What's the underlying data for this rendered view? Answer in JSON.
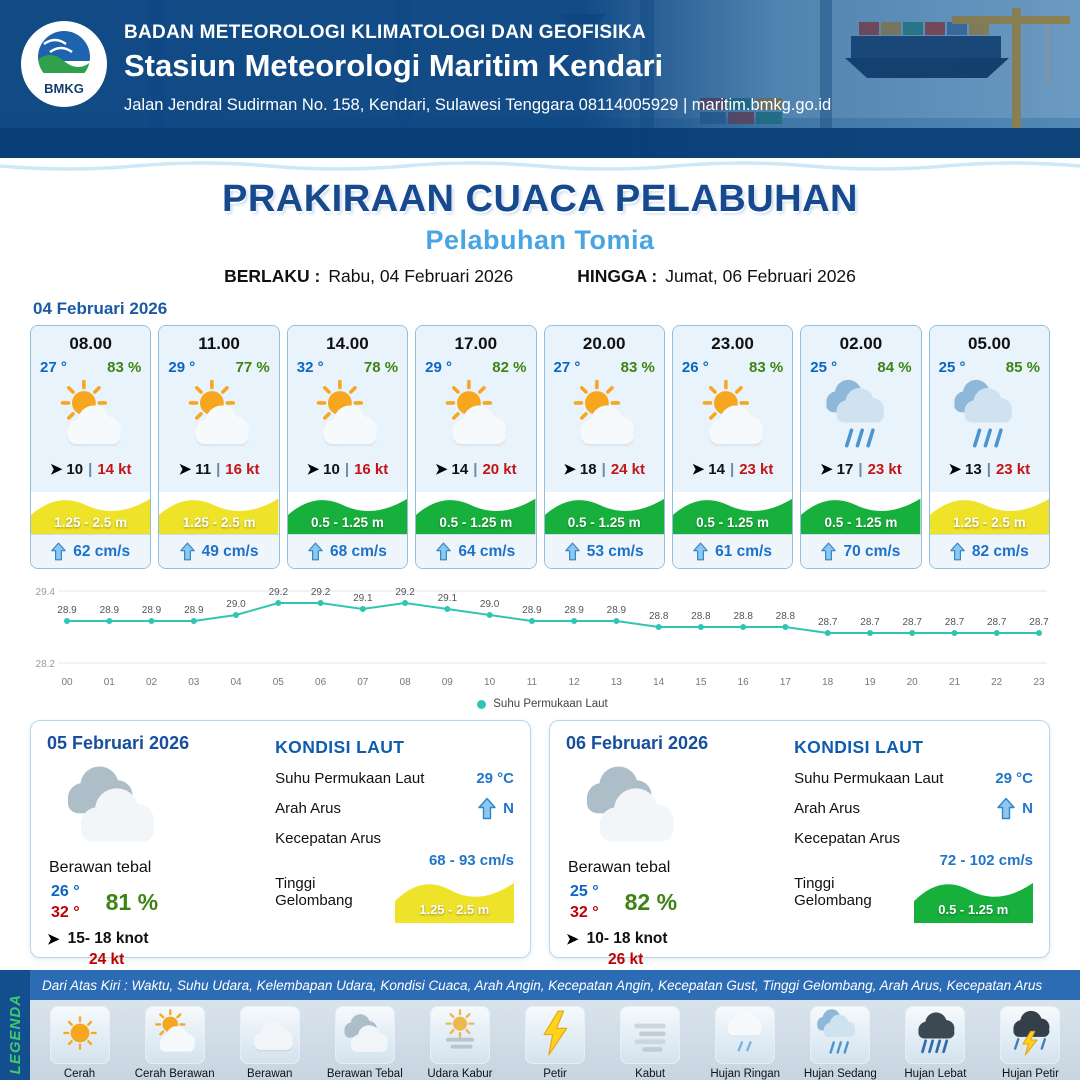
{
  "header": {
    "logo_text": "BMKG",
    "agency": "BADAN METEOROLOGI KLIMATOLOGI DAN GEOFISIKA",
    "station": "Stasiun Meteorologi Maritim Kendari",
    "address": "Jalan Jendral Sudirman No. 158, Kendari, Sulawesi Tenggara  08114005929 | maritim.bmkg.go.id"
  },
  "title": {
    "main": "PRAKIRAAN CUACA PELABUHAN",
    "port": "Pelabuhan Tomia",
    "berlaku_label": "BERLAKU :",
    "berlaku_value": "Rabu, 04 Februari 2026",
    "hingga_label": "HINGGA :",
    "hingga_value": "Jumat, 06 Februari 2026"
  },
  "forecast": {
    "date": "04 Februari 2026",
    "wind_separator": "|",
    "cards": [
      {
        "time": "08.00",
        "temp": "27 °",
        "humidity": "83 %",
        "icon": "cerah-berawan",
        "wind_speed": "10",
        "gust": "14 kt",
        "wave": "1.25 - 2.5 m",
        "wave_color": "#efe32a",
        "current": "62 cm/s"
      },
      {
        "time": "11.00",
        "temp": "29 °",
        "humidity": "77 %",
        "icon": "cerah-berawan",
        "wind_speed": "11",
        "gust": "16 kt",
        "wave": "1.25 - 2.5 m",
        "wave_color": "#efe32a",
        "current": "49 cm/s"
      },
      {
        "time": "14.00",
        "temp": "32 °",
        "humidity": "78 %",
        "icon": "cerah-berawan",
        "wind_speed": "10",
        "gust": "16 kt",
        "wave": "0.5 - 1.25 m",
        "wave_color": "#17b03c",
        "current": "68 cm/s"
      },
      {
        "time": "17.00",
        "temp": "29 °",
        "humidity": "82 %",
        "icon": "cerah-berawan",
        "wind_speed": "14",
        "gust": "20 kt",
        "wave": "0.5 - 1.25 m",
        "wave_color": "#17b03c",
        "current": "64 cm/s"
      },
      {
        "time": "20.00",
        "temp": "27 °",
        "humidity": "83 %",
        "icon": "cerah-berawan",
        "wind_speed": "18",
        "gust": "24 kt",
        "wave": "0.5 - 1.25 m",
        "wave_color": "#17b03c",
        "current": "53 cm/s"
      },
      {
        "time": "23.00",
        "temp": "26 °",
        "humidity": "83 %",
        "icon": "cerah-berawan",
        "wind_speed": "14",
        "gust": "23 kt",
        "wave": "0.5 - 1.25 m",
        "wave_color": "#17b03c",
        "current": "61 cm/s"
      },
      {
        "time": "02.00",
        "temp": "25 °",
        "humidity": "84 %",
        "icon": "hujan-sedang",
        "wind_speed": "17",
        "gust": "23 kt",
        "wave": "0.5 - 1.25 m",
        "wave_color": "#17b03c",
        "current": "70 cm/s"
      },
      {
        "time": "05.00",
        "temp": "25 °",
        "humidity": "85 %",
        "icon": "hujan-sedang",
        "wind_speed": "13",
        "gust": "23 kt",
        "wave": "1.25 - 2.5 m",
        "wave_color": "#efe32a",
        "current": "82 cm/s"
      }
    ]
  },
  "chart_data": {
    "type": "line",
    "x": [
      "00",
      "01",
      "02",
      "03",
      "04",
      "05",
      "06",
      "07",
      "08",
      "09",
      "10",
      "11",
      "12",
      "13",
      "14",
      "15",
      "16",
      "17",
      "18",
      "19",
      "20",
      "21",
      "22",
      "23"
    ],
    "series": [
      {
        "name": "Suhu Permukaan Laut",
        "color": "#2fc5b2",
        "values": [
          28.9,
          28.9,
          28.9,
          28.9,
          29.0,
          29.2,
          29.2,
          29.1,
          29.2,
          29.1,
          29.0,
          28.9,
          28.9,
          28.9,
          28.8,
          28.8,
          28.8,
          28.8,
          28.7,
          28.7,
          28.7,
          28.7,
          28.7,
          28.7
        ]
      }
    ],
    "ylim": [
      28.2,
      29.4
    ],
    "ytick_labels": [
      "29.4",
      "28.2"
    ],
    "grid": true,
    "legend_position": "bottom"
  },
  "day_cards": [
    {
      "date": "05 Februari 2026",
      "icon": "berawan-tebal",
      "condition": "Berawan tebal",
      "temp_min": "26 °",
      "temp_max": "32 °",
      "humidity": "81 %",
      "wind_range": "15- 18 knot",
      "gust": "24 kt",
      "sea_title": "KONDISI LAUT",
      "sst_label": "Suhu Permukaan Laut",
      "sst_value": "29 °C",
      "current_dir_label": "Arah Arus",
      "current_dir": "N",
      "current_speed_label": "Kecepatan Arus",
      "current_speed": "68 - 93 cm/s",
      "wave_label": "Tinggi Gelombang",
      "wave": "1.25 - 2.5 m",
      "wave_color": "#efe32a"
    },
    {
      "date": "06 Februari 2026",
      "icon": "berawan-tebal",
      "condition": "Berawan tebal",
      "temp_min": "25 °",
      "temp_max": "32 °",
      "humidity": "82 %",
      "wind_range": "10- 18 knot",
      "gust": "26 kt",
      "sea_title": "KONDISI LAUT",
      "sst_label": "Suhu Permukaan Laut",
      "sst_value": "29 °C",
      "current_dir_label": "Arah Arus",
      "current_dir": "N",
      "current_speed_label": "Kecepatan Arus",
      "current_speed": "72 - 102 cm/s",
      "wave_label": "Tinggi Gelombang",
      "wave": "0.5 - 1.25 m",
      "wave_color": "#17b03c"
    }
  ],
  "legend": {
    "side_label": "LEGENDA",
    "description": "Dari Atas Kiri : Waktu, Suhu Udara, Kelembapan Udara, Kondisi Cuaca, Arah Angin, Kecepatan Angin, Kecepatan Gust, Tinggi Gelombang, Arah Arus, Kecepatan Arus",
    "items": [
      {
        "label": "Cerah",
        "icon": "cerah"
      },
      {
        "label": "Cerah Berawan",
        "icon": "cerah-berawan"
      },
      {
        "label": "Berawan",
        "icon": "berawan"
      },
      {
        "label": "Berawan Tebal",
        "icon": "berawan-tebal"
      },
      {
        "label": "Udara Kabur",
        "icon": "udara-kabur"
      },
      {
        "label": "Petir",
        "icon": "petir"
      },
      {
        "label": "Kabut",
        "icon": "kabut"
      },
      {
        "label": "Hujan Ringan",
        "icon": "hujan-ringan"
      },
      {
        "label": "Hujan Sedang",
        "icon": "hujan-sedang"
      },
      {
        "label": "Hujan Lebat",
        "icon": "hujan-lebat"
      },
      {
        "label": "Hujan Petir",
        "icon": "hujan-petir"
      }
    ]
  }
}
